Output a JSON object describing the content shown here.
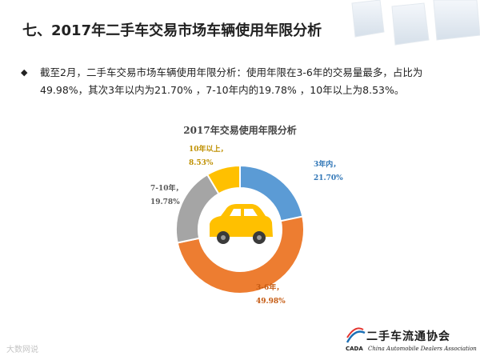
{
  "header": {
    "title": "七、2017年二手车交易市场车辆使用年限分析"
  },
  "bullet": {
    "text": "截至2月，二手车交易市场车辆使用年限分析：使用年限在3-6年的交易量最多，占比为49.98%，其次3年以内为21.70% ，7-10年内的19.78% ，10年以上为8.53%。"
  },
  "chart_data": {
    "type": "pie",
    "title": "2017年交易使用年限分析",
    "categories": [
      "3年内",
      "3-6年",
      "7-10年",
      "10年以上"
    ],
    "values": [
      21.7,
      49.98,
      19.78,
      8.53
    ],
    "value_labels": [
      "21.70%",
      "49.98%",
      "19.78%",
      "8.53%"
    ],
    "colors": [
      "#5b9bd5",
      "#ed7d31",
      "#a5a5a5",
      "#ffc000"
    ],
    "label_colors": [
      "#2e75b6",
      "#c55a11",
      "#595959",
      "#bf9000"
    ],
    "hole": "donut",
    "center_icon": "car-icon"
  },
  "footer": {
    "left_watermark": "大数网说",
    "association_cn": "二手车流通协会",
    "association_en": "China Automobile Dealers Association",
    "association_logo": "CADA"
  }
}
